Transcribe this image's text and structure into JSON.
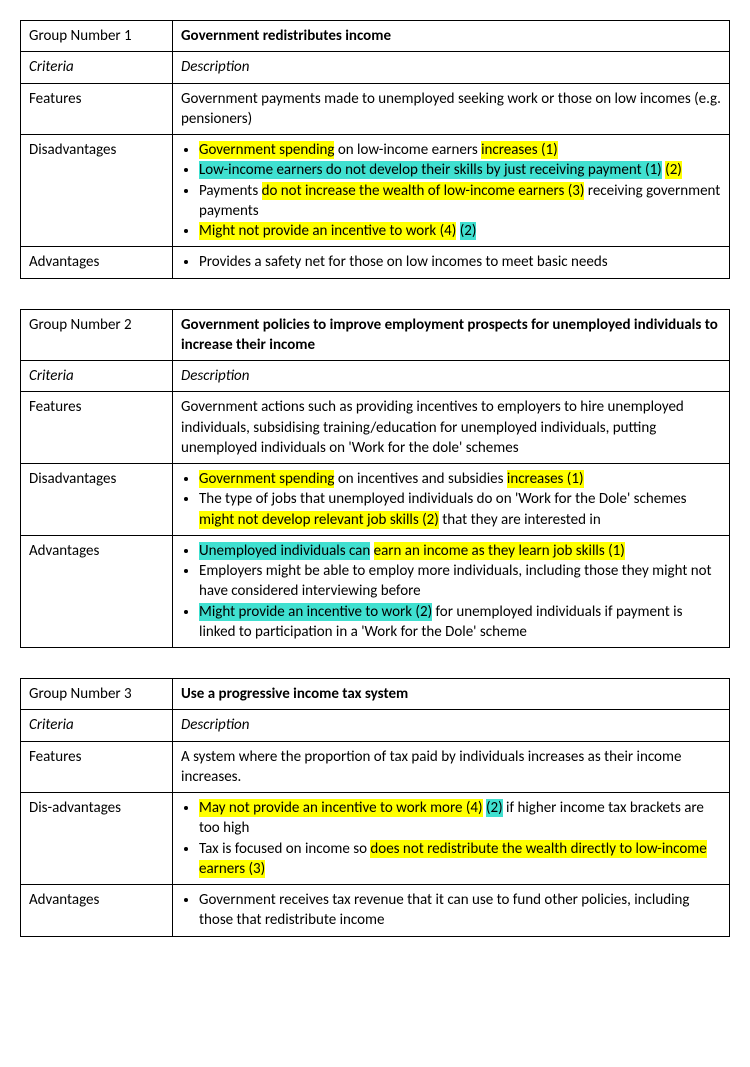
{
  "highlight_colors": {
    "yellow": "#ffff00",
    "cyan": "#40e0d0"
  },
  "tables": [
    {
      "group_label": "Group Number 1",
      "title": "Government redistributes income",
      "criteria_label": "Criteria",
      "description_label": "Description",
      "rows": [
        {
          "label": "Features",
          "type": "text",
          "text": "Government payments made to unemployed seeking work or those on low incomes (e.g. pensioners)"
        },
        {
          "label": "Disadvantages",
          "type": "bullets",
          "items": [
            {
              "segments": [
                {
                  "t": "Government spending",
                  "h": "y"
                },
                {
                  "t": " on low-income earners "
                },
                {
                  "t": "increases (1)",
                  "h": "y"
                }
              ]
            },
            {
              "segments": [
                {
                  "t": "Low-income earners do not develop their skills by just receiving payment (1)",
                  "h": "c"
                },
                {
                  "t": " "
                },
                {
                  "t": "(2)",
                  "h": "y"
                }
              ]
            },
            {
              "segments": [
                {
                  "t": "Payments "
                },
                {
                  "t": "do not increase the wealth of low-income earners (3)",
                  "h": "y"
                },
                {
                  "t": " receiving government payments"
                }
              ]
            },
            {
              "segments": [
                {
                  "t": "Might not provide an incentive to work (4)",
                  "h": "y"
                },
                {
                  "t": " "
                },
                {
                  "t": "(2)",
                  "h": "c"
                }
              ]
            }
          ]
        },
        {
          "label": "Advantages",
          "type": "bullets",
          "items": [
            {
              "segments": [
                {
                  "t": "Provides a safety net for those on low incomes to meet basic needs"
                }
              ]
            }
          ]
        }
      ]
    },
    {
      "group_label": "Group Number 2",
      "title": "Government policies to improve employment prospects for unemployed individuals to increase their income",
      "criteria_label": "Criteria",
      "description_label": "Description",
      "rows": [
        {
          "label": "Features",
          "type": "text",
          "text": "Government actions such as providing incentives to employers to hire unemployed individuals, subsidising training/education for unemployed individuals, putting unemployed individuals on 'Work for the dole' schemes"
        },
        {
          "label": "Disadvantages",
          "type": "bullets",
          "items": [
            {
              "segments": [
                {
                  "t": "Government spending",
                  "h": "y"
                },
                {
                  "t": " on incentives and subsidies "
                },
                {
                  "t": "increases (1)",
                  "h": "y"
                }
              ]
            },
            {
              "segments": [
                {
                  "t": "The type of jobs that unemployed individuals do on 'Work for the Dole' schemes "
                },
                {
                  "t": "might not develop relevant job skills (2)",
                  "h": "y"
                },
                {
                  "t": " that they are interested in"
                }
              ]
            }
          ]
        },
        {
          "label": "Advantages",
          "type": "bullets",
          "items": [
            {
              "segments": [
                {
                  "t": "Unemployed individuals can",
                  "h": "c"
                },
                {
                  "t": " "
                },
                {
                  "t": "earn an income as they learn job skills (1)",
                  "h": "y"
                }
              ]
            },
            {
              "segments": [
                {
                  "t": "Employers might be able to employ more individuals, including those they might not have considered interviewing before"
                }
              ]
            },
            {
              "segments": [
                {
                  "t": "Might provide an incentive to work (2)",
                  "h": "c"
                },
                {
                  "t": " for unemployed individuals if payment is linked to participation in a 'Work for the Dole' scheme"
                }
              ]
            }
          ]
        }
      ]
    },
    {
      "group_label": "Group Number 3",
      "title": "Use a progressive income tax system",
      "criteria_label": "Criteria",
      "description_label": "Description",
      "rows": [
        {
          "label": "Features",
          "type": "text",
          "text": "A system where the proportion of tax paid by individuals increases as their income increases."
        },
        {
          "label": "Dis-advantages",
          "type": "bullets",
          "items": [
            {
              "segments": [
                {
                  "t": "May not provide an incentive to work more (4)",
                  "h": "y"
                },
                {
                  "t": " "
                },
                {
                  "t": "(2)",
                  "h": "c"
                },
                {
                  "t": " if higher income tax brackets are too high"
                }
              ]
            },
            {
              "segments": [
                {
                  "t": "Tax is focused on income so "
                },
                {
                  "t": "does not redistribute the wealth directly to low-income earners (3)",
                  "h": "y"
                }
              ]
            }
          ]
        },
        {
          "label": "Advantages",
          "type": "bullets",
          "items": [
            {
              "segments": [
                {
                  "t": "Government receives tax revenue that it can use to fund other policies, including those that redistribute income"
                }
              ]
            }
          ]
        }
      ]
    }
  ]
}
